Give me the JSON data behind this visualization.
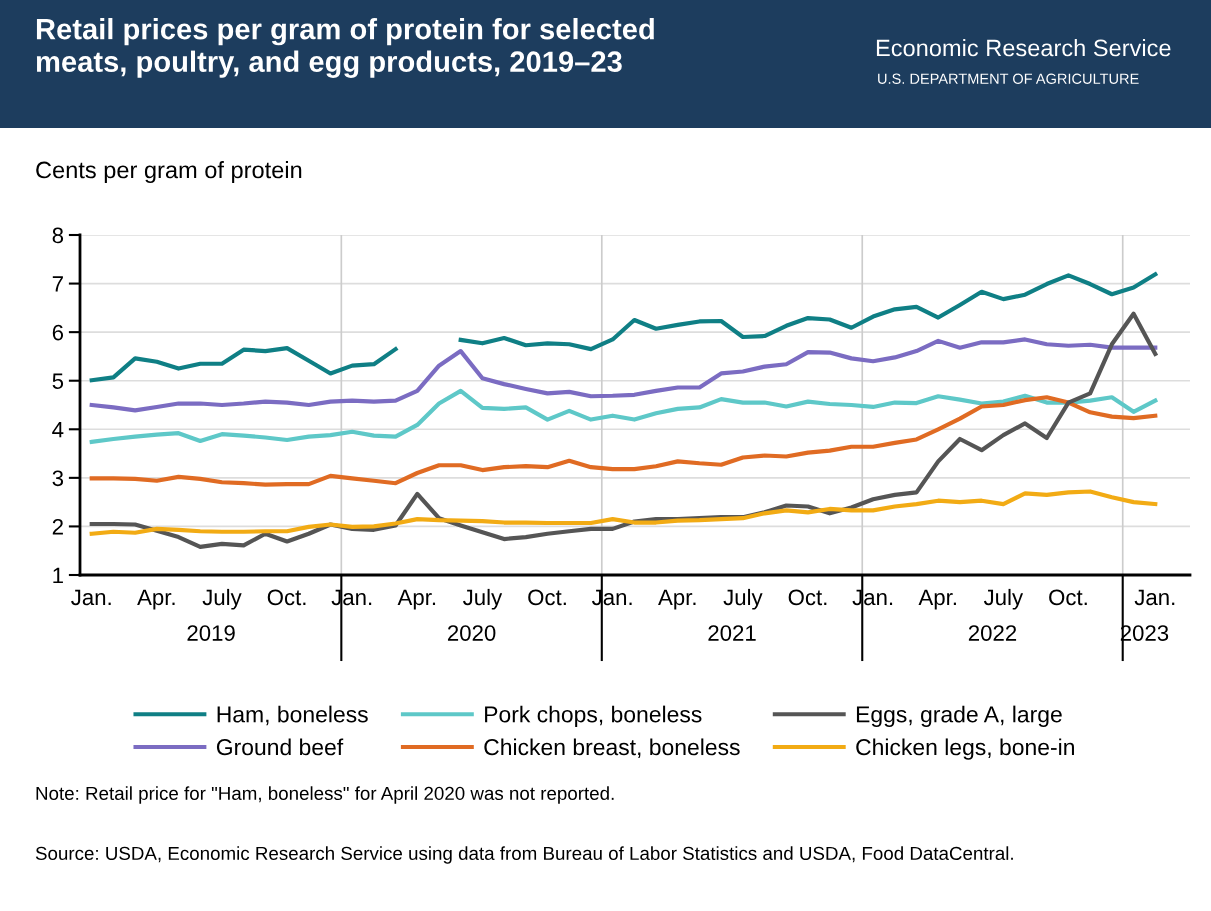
{
  "chart_data": {
    "type": "line",
    "title": "Retail prices per gram of protein for selected\nmeats, poultry, and egg products, 2019–23",
    "ylabel": "Cents per gram of protein",
    "categories": [
      "Jan.",
      null,
      null,
      "Apr.",
      null,
      null,
      "July",
      null,
      null,
      "Oct.",
      null,
      null,
      "Jan.",
      null,
      null,
      "Apr.",
      null,
      null,
      "July",
      null,
      null,
      "Oct.",
      null,
      null,
      "Jan.",
      null,
      null,
      "Apr.",
      null,
      null,
      "July",
      null,
      null,
      "Oct.",
      null,
      null,
      "Jan.",
      null,
      null,
      "Apr.",
      null,
      null,
      "July",
      null,
      null,
      "Oct.",
      null,
      null,
      null,
      "Jan."
    ],
    "series": [
      {
        "name": "Ham, boneless",
        "color": "#0f7f85",
        "values": [
          5.01,
          5.07,
          5.46,
          5.39,
          5.25,
          5.35,
          5.35,
          5.64,
          5.61,
          5.67,
          5.41,
          5.15,
          5.31,
          5.34,
          5.65,
          null,
          null,
          5.84,
          5.77,
          5.88,
          5.73,
          5.77,
          5.75,
          5.65,
          5.85,
          6.25,
          6.07,
          6.15,
          6.22,
          6.23,
          5.9,
          5.92,
          6.13,
          6.29,
          6.26,
          6.09,
          6.32,
          6.47,
          6.52,
          6.3,
          6.56,
          6.83,
          6.68,
          6.77,
          6.99,
          7.17,
          6.99,
          6.78,
          6.92,
          7.19
        ]
      },
      {
        "name": "Ground beef",
        "color": "#7b6cc2",
        "values": [
          4.5,
          4.45,
          4.39,
          4.46,
          4.53,
          4.53,
          4.5,
          4.53,
          4.57,
          4.55,
          4.5,
          4.57,
          4.59,
          4.57,
          4.59,
          4.79,
          5.31,
          5.61,
          5.05,
          4.93,
          4.83,
          4.74,
          4.77,
          4.68,
          4.69,
          4.71,
          4.79,
          4.86,
          4.86,
          5.15,
          5.19,
          5.29,
          5.34,
          5.59,
          5.58,
          5.46,
          5.4,
          5.48,
          5.61,
          5.82,
          5.68,
          5.79,
          5.79,
          5.85,
          5.75,
          5.72,
          5.74,
          5.68,
          5.68,
          5.68
        ]
      },
      {
        "name": "Pork chops, boneless",
        "color": "#5ec8c8",
        "values": [
          3.74,
          3.8,
          3.85,
          3.89,
          3.92,
          3.76,
          3.9,
          3.87,
          3.83,
          3.78,
          3.85,
          3.88,
          3.95,
          3.87,
          3.85,
          4.09,
          4.53,
          4.79,
          4.44,
          4.42,
          4.45,
          4.2,
          4.38,
          4.2,
          4.28,
          4.2,
          4.33,
          4.42,
          4.45,
          4.62,
          4.55,
          4.55,
          4.47,
          4.57,
          4.52,
          4.5,
          4.46,
          4.55,
          4.54,
          4.68,
          4.61,
          4.53,
          4.57,
          4.69,
          4.55,
          4.55,
          4.59,
          4.66,
          4.36,
          4.59
        ]
      },
      {
        "name": "Chicken breast, boneless",
        "color": "#e06b23",
        "values": [
          2.99,
          2.99,
          2.98,
          2.94,
          3.02,
          2.98,
          2.91,
          2.89,
          2.86,
          2.87,
          2.87,
          3.04,
          2.99,
          2.94,
          2.89,
          3.1,
          3.26,
          3.26,
          3.16,
          3.22,
          3.24,
          3.22,
          3.35,
          3.22,
          3.18,
          3.18,
          3.24,
          3.34,
          3.3,
          3.27,
          3.42,
          3.46,
          3.44,
          3.52,
          3.56,
          3.64,
          3.64,
          3.72,
          3.79,
          4.0,
          4.22,
          4.47,
          4.5,
          4.6,
          4.66,
          4.55,
          4.35,
          4.26,
          4.23,
          4.28
        ]
      },
      {
        "name": "Eggs, grade A, large",
        "color": "#555555",
        "values": [
          2.05,
          2.05,
          2.04,
          1.91,
          1.78,
          1.58,
          1.64,
          1.61,
          1.85,
          1.69,
          1.85,
          2.04,
          1.95,
          1.93,
          2.02,
          2.67,
          2.17,
          2.02,
          1.88,
          1.74,
          1.78,
          1.85,
          1.9,
          1.95,
          1.95,
          2.1,
          2.15,
          2.15,
          2.17,
          2.19,
          2.19,
          2.29,
          2.43,
          2.41,
          2.27,
          2.39,
          2.56,
          2.65,
          2.7,
          3.34,
          3.8,
          3.57,
          3.88,
          4.12,
          3.82,
          4.55,
          4.74,
          5.75,
          6.38,
          5.55
        ]
      },
      {
        "name": "Chicken legs, bone-in",
        "color": "#f2ab14",
        "values": [
          1.85,
          1.89,
          1.87,
          1.95,
          1.93,
          1.9,
          1.89,
          1.89,
          1.9,
          1.9,
          1.99,
          2.04,
          1.99,
          2.0,
          2.06,
          2.15,
          2.13,
          2.12,
          2.11,
          2.08,
          2.08,
          2.07,
          2.07,
          2.07,
          2.15,
          2.08,
          2.08,
          2.12,
          2.13,
          2.15,
          2.17,
          2.27,
          2.33,
          2.29,
          2.36,
          2.33,
          2.33,
          2.41,
          2.46,
          2.53,
          2.5,
          2.53,
          2.46,
          2.68,
          2.65,
          2.7,
          2.72,
          2.6,
          2.5,
          2.46
        ]
      }
    ],
    "ylim": [
      1,
      8
    ],
    "yticks": [
      1,
      2,
      3,
      4,
      5,
      6,
      7,
      8
    ],
    "grid": true,
    "legend": "bottom",
    "line_style": "solid",
    "marker": "none",
    "annotations": [
      "Economic Research Service",
      "U.S. DEPARTMENT OF AGRICULTURE",
      "Note: Retail price for \"Ham, boneless\" for April 2020 was not reported.",
      "Source: USDA, Economic Research Service using data from Bureau of Labor Statistics and USDA, Food DataCentral.",
      "2019",
      "2020",
      "2021",
      "2022",
      "2023"
    ]
  }
}
